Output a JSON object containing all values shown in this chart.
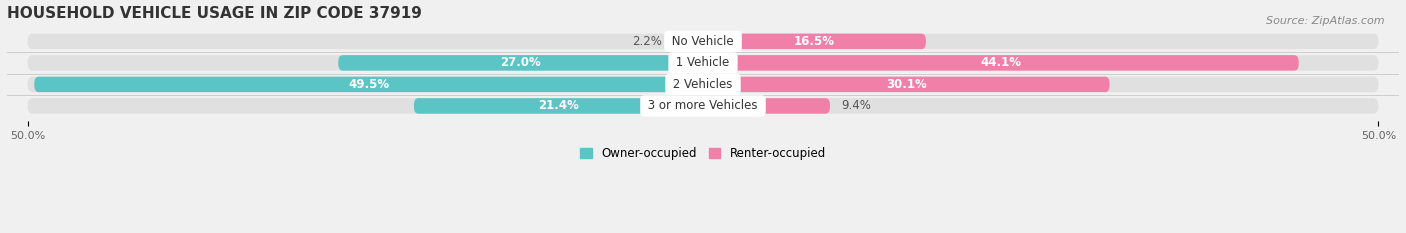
{
  "title": "HOUSEHOLD VEHICLE USAGE IN ZIP CODE 37919",
  "source": "Source: ZipAtlas.com",
  "categories": [
    "No Vehicle",
    "1 Vehicle",
    "2 Vehicles",
    "3 or more Vehicles"
  ],
  "owner_values": [
    2.2,
    27.0,
    49.5,
    21.4
  ],
  "renter_values": [
    16.5,
    44.1,
    30.1,
    9.4
  ],
  "owner_color": "#5BC4C4",
  "renter_color": "#F080A8",
  "renter_color_light": "#F8B8CC",
  "axis_max": 50.0,
  "bar_height": 0.72,
  "background_color": "#f0f0f0",
  "bar_background_color": "#e0e0e0",
  "title_fontsize": 11,
  "source_fontsize": 8,
  "bar_label_fontsize": 8.5,
  "category_fontsize": 8.5,
  "legend_fontsize": 8.5,
  "axis_tick_fontsize": 8
}
